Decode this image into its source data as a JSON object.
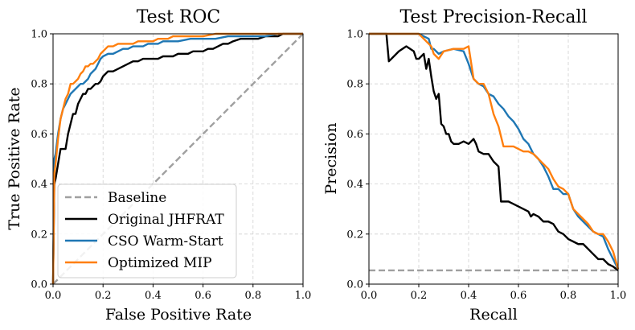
{
  "chart_data": [
    {
      "type": "line",
      "title": "Test ROC",
      "xlabel": "False Positive Rate",
      "ylabel": "True Positive Rate",
      "xlim": [
        0,
        1
      ],
      "ylim": [
        0,
        1
      ],
      "xticks": [
        "0.0",
        "0.2",
        "0.4",
        "0.6",
        "0.8",
        "1.0"
      ],
      "yticks": [
        "0.0",
        "0.2",
        "0.4",
        "0.6",
        "0.8",
        "1.0"
      ],
      "grid": true,
      "legend": {
        "position": "lower-left",
        "entries": [
          "Baseline",
          "Original JHFRAT",
          "CSO Warm-Start",
          "Optimized MIP"
        ]
      },
      "series": [
        {
          "name": "Baseline",
          "color": "#a0a0a0",
          "style": "dashed",
          "x": [
            0,
            1
          ],
          "y": [
            0,
            1
          ]
        },
        {
          "name": "Original JHFRAT",
          "color": "#000000",
          "style": "solid",
          "x": [
            0,
            0.005,
            0.01,
            0.02,
            0.03,
            0.04,
            0.05,
            0.06,
            0.07,
            0.08,
            0.09,
            0.1,
            0.11,
            0.12,
            0.13,
            0.14,
            0.15,
            0.16,
            0.17,
            0.18,
            0.19,
            0.2,
            0.22,
            0.24,
            0.26,
            0.28,
            0.3,
            0.32,
            0.34,
            0.36,
            0.38,
            0.4,
            0.42,
            0.44,
            0.46,
            0.48,
            0.5,
            0.52,
            0.54,
            0.56,
            0.58,
            0.6,
            0.62,
            0.64,
            0.66,
            0.68,
            0.7,
            0.72,
            0.75,
            0.78,
            0.82,
            0.85,
            0.88,
            0.9,
            0.92,
            0.95,
            1.0
          ],
          "y": [
            0,
            0.4,
            0.42,
            0.48,
            0.54,
            0.54,
            0.54,
            0.6,
            0.64,
            0.68,
            0.68,
            0.72,
            0.74,
            0.76,
            0.76,
            0.78,
            0.78,
            0.79,
            0.8,
            0.8,
            0.81,
            0.83,
            0.85,
            0.85,
            0.86,
            0.87,
            0.88,
            0.89,
            0.89,
            0.9,
            0.9,
            0.9,
            0.9,
            0.91,
            0.91,
            0.91,
            0.92,
            0.92,
            0.92,
            0.93,
            0.93,
            0.93,
            0.94,
            0.94,
            0.95,
            0.96,
            0.96,
            0.97,
            0.98,
            0.98,
            0.98,
            0.99,
            0.99,
            0.99,
            1.0,
            1.0,
            1.0
          ]
        },
        {
          "name": "CSO Warm-Start",
          "color": "#1f77b4",
          "style": "solid",
          "x": [
            0,
            0.005,
            0.01,
            0.02,
            0.03,
            0.04,
            0.05,
            0.06,
            0.07,
            0.08,
            0.09,
            0.1,
            0.11,
            0.12,
            0.13,
            0.14,
            0.15,
            0.16,
            0.17,
            0.18,
            0.19,
            0.2,
            0.22,
            0.24,
            0.26,
            0.28,
            0.3,
            0.32,
            0.34,
            0.36,
            0.38,
            0.4,
            0.42,
            0.44,
            0.46,
            0.48,
            0.5,
            0.55,
            0.6,
            0.65,
            0.7,
            0.75,
            0.8,
            0.85,
            0.9,
            0.95,
            1.0
          ],
          "y": [
            0,
            0.5,
            0.52,
            0.6,
            0.66,
            0.7,
            0.72,
            0.74,
            0.76,
            0.77,
            0.78,
            0.79,
            0.8,
            0.8,
            0.81,
            0.82,
            0.84,
            0.85,
            0.86,
            0.88,
            0.9,
            0.91,
            0.92,
            0.92,
            0.93,
            0.94,
            0.94,
            0.95,
            0.95,
            0.95,
            0.96,
            0.96,
            0.96,
            0.97,
            0.97,
            0.97,
            0.97,
            0.98,
            0.98,
            0.98,
            0.99,
            0.99,
            0.99,
            0.99,
            1.0,
            1.0,
            1.0
          ]
        },
        {
          "name": "Optimized MIP",
          "color": "#ff7f0e",
          "style": "solid",
          "x": [
            0,
            0.005,
            0.01,
            0.02,
            0.03,
            0.04,
            0.05,
            0.06,
            0.07,
            0.08,
            0.09,
            0.1,
            0.11,
            0.12,
            0.13,
            0.14,
            0.15,
            0.16,
            0.17,
            0.18,
            0.19,
            0.2,
            0.22,
            0.24,
            0.26,
            0.28,
            0.3,
            0.32,
            0.34,
            0.36,
            0.38,
            0.4,
            0.42,
            0.44,
            0.46,
            0.48,
            0.5,
            0.55,
            0.6,
            0.65,
            0.7,
            0.75,
            0.8,
            0.85,
            0.9,
            0.95,
            1.0
          ],
          "y": [
            0,
            0.44,
            0.48,
            0.58,
            0.66,
            0.7,
            0.74,
            0.76,
            0.8,
            0.8,
            0.81,
            0.82,
            0.84,
            0.85,
            0.87,
            0.87,
            0.88,
            0.88,
            0.89,
            0.9,
            0.92,
            0.93,
            0.95,
            0.95,
            0.96,
            0.96,
            0.96,
            0.96,
            0.97,
            0.97,
            0.97,
            0.97,
            0.98,
            0.98,
            0.98,
            0.99,
            0.99,
            0.99,
            0.99,
            1.0,
            1.0,
            1.0,
            1.0,
            1.0,
            1.0,
            1.0,
            1.0
          ]
        }
      ]
    },
    {
      "type": "line",
      "title": "Test Precision-Recall",
      "xlabel": "Recall",
      "ylabel": "Precision",
      "xlim": [
        0,
        1
      ],
      "ylim": [
        0,
        1
      ],
      "xticks": [
        "0.0",
        "0.2",
        "0.4",
        "0.6",
        "0.8",
        "1.0"
      ],
      "yticks": [
        "0.0",
        "0.2",
        "0.4",
        "0.6",
        "0.8",
        "1.0"
      ],
      "grid": true,
      "series": [
        {
          "name": "Baseline",
          "color": "#a0a0a0",
          "style": "dashed",
          "x": [
            0,
            1
          ],
          "y": [
            0.055,
            0.055
          ]
        },
        {
          "name": "Original JHFRAT",
          "color": "#000000",
          "style": "solid",
          "x": [
            0,
            0.07,
            0.08,
            0.1,
            0.12,
            0.15,
            0.18,
            0.19,
            0.2,
            0.22,
            0.23,
            0.24,
            0.25,
            0.26,
            0.27,
            0.28,
            0.29,
            0.3,
            0.31,
            0.32,
            0.33,
            0.34,
            0.35,
            0.36,
            0.38,
            0.4,
            0.42,
            0.43,
            0.44,
            0.46,
            0.48,
            0.5,
            0.52,
            0.53,
            0.54,
            0.56,
            0.58,
            0.6,
            0.62,
            0.64,
            0.65,
            0.66,
            0.68,
            0.7,
            0.72,
            0.74,
            0.76,
            0.78,
            0.8,
            0.82,
            0.84,
            0.86,
            0.88,
            0.9,
            0.92,
            0.94,
            0.96,
            0.98,
            1.0
          ],
          "y": [
            1.0,
            1.0,
            0.89,
            0.91,
            0.93,
            0.95,
            0.93,
            0.9,
            0.9,
            0.92,
            0.86,
            0.9,
            0.83,
            0.77,
            0.74,
            0.76,
            0.64,
            0.63,
            0.6,
            0.6,
            0.57,
            0.56,
            0.56,
            0.56,
            0.57,
            0.56,
            0.58,
            0.56,
            0.53,
            0.52,
            0.52,
            0.49,
            0.47,
            0.33,
            0.33,
            0.33,
            0.32,
            0.31,
            0.3,
            0.29,
            0.27,
            0.28,
            0.27,
            0.25,
            0.25,
            0.24,
            0.21,
            0.2,
            0.18,
            0.17,
            0.16,
            0.16,
            0.14,
            0.12,
            0.1,
            0.1,
            0.08,
            0.07,
            0.055
          ]
        },
        {
          "name": "CSO Warm-Start",
          "color": "#1f77b4",
          "style": "solid",
          "x": [
            0,
            0.1,
            0.14,
            0.2,
            0.24,
            0.25,
            0.26,
            0.28,
            0.3,
            0.34,
            0.38,
            0.4,
            0.42,
            0.44,
            0.46,
            0.48,
            0.5,
            0.52,
            0.54,
            0.56,
            0.58,
            0.6,
            0.62,
            0.64,
            0.66,
            0.68,
            0.7,
            0.72,
            0.74,
            0.76,
            0.78,
            0.8,
            0.82,
            0.84,
            0.86,
            0.88,
            0.9,
            0.92,
            0.94,
            0.96,
            0.98,
            1.0
          ],
          "y": [
            1.0,
            1.0,
            1.0,
            1.0,
            0.98,
            0.94,
            0.94,
            0.92,
            0.93,
            0.94,
            0.93,
            0.88,
            0.82,
            0.8,
            0.79,
            0.76,
            0.75,
            0.72,
            0.7,
            0.67,
            0.65,
            0.62,
            0.58,
            0.56,
            0.52,
            0.5,
            0.47,
            0.43,
            0.38,
            0.38,
            0.36,
            0.36,
            0.3,
            0.27,
            0.25,
            0.23,
            0.21,
            0.2,
            0.19,
            0.14,
            0.1,
            0.06
          ]
        },
        {
          "name": "Optimized MIP",
          "color": "#ff7f0e",
          "style": "solid",
          "x": [
            0,
            0.1,
            0.14,
            0.2,
            0.24,
            0.25,
            0.26,
            0.28,
            0.3,
            0.34,
            0.38,
            0.4,
            0.42,
            0.44,
            0.46,
            0.48,
            0.5,
            0.52,
            0.54,
            0.56,
            0.58,
            0.6,
            0.62,
            0.64,
            0.66,
            0.68,
            0.7,
            0.72,
            0.74,
            0.76,
            0.78,
            0.8,
            0.82,
            0.84,
            0.86,
            0.88,
            0.9,
            0.92,
            0.94,
            0.96,
            0.98,
            1.0
          ],
          "y": [
            1.0,
            1.0,
            1.0,
            1.0,
            0.96,
            0.95,
            0.92,
            0.9,
            0.93,
            0.94,
            0.94,
            0.95,
            0.82,
            0.8,
            0.8,
            0.76,
            0.68,
            0.63,
            0.55,
            0.55,
            0.55,
            0.54,
            0.53,
            0.53,
            0.52,
            0.5,
            0.48,
            0.46,
            0.42,
            0.39,
            0.38,
            0.36,
            0.3,
            0.28,
            0.26,
            0.24,
            0.21,
            0.2,
            0.2,
            0.17,
            0.13,
            0.06
          ]
        }
      ]
    }
  ]
}
